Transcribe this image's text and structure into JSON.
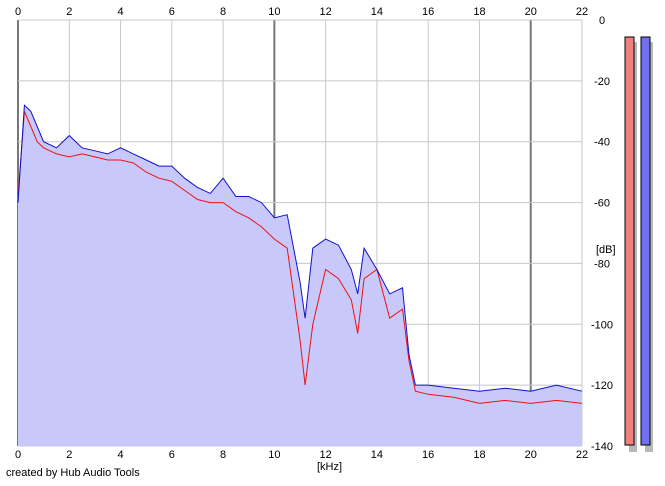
{
  "chart_data": {
    "type": "line",
    "title": "",
    "xlabel": "[kHz]",
    "ylabel": "[dB]",
    "xlim": [
      0,
      22
    ],
    "ylim": [
      -140,
      0
    ],
    "x_ticks": [
      0,
      2,
      4,
      6,
      8,
      10,
      12,
      14,
      16,
      18,
      20,
      22
    ],
    "y_ticks": [
      0,
      -20,
      -40,
      -60,
      -80,
      -100,
      -120,
      -140
    ],
    "y_tick_labels": [
      "0",
      "-20",
      "-40",
      "-60",
      "-80",
      "-100",
      "-120",
      "-140"
    ],
    "grid": true,
    "x_axis_labels_top_and_bottom": true,
    "background_fill_color": "#c8c8fa",
    "series": [
      {
        "color": "#ee1111",
        "x": [
          0,
          0.25,
          0.5,
          0.75,
          1,
          1.5,
          2,
          2.5,
          3,
          3.5,
          4,
          4.5,
          5,
          5.5,
          6,
          6.5,
          7,
          7.5,
          8,
          8.5,
          9,
          9.5,
          10,
          10.5,
          11,
          11.2,
          11.5,
          12,
          12.5,
          13,
          13.25,
          13.5,
          14,
          14.5,
          15,
          15.25,
          15.5,
          16,
          17,
          18,
          19,
          20,
          21,
          22
        ],
        "values": [
          -58,
          -30,
          -35,
          -40,
          -42,
          -44,
          -45,
          -44,
          -45,
          -46,
          -46,
          -47,
          -50,
          -52,
          -53,
          -56,
          -59,
          -60,
          -60,
          -63,
          -65,
          -68,
          -72,
          -75,
          -105,
          -120,
          -100,
          -82,
          -85,
          -92,
          -103,
          -85,
          -82,
          -98,
          -95,
          -112,
          -122,
          -123,
          -124,
          -126,
          -125,
          -126,
          -125,
          -126
        ]
      },
      {
        "color": "#1111cc",
        "x": [
          0,
          0.25,
          0.5,
          0.75,
          1,
          1.5,
          2,
          2.5,
          3,
          3.5,
          4,
          4.5,
          5,
          5.5,
          6,
          6.5,
          7,
          7.5,
          8,
          8.5,
          9,
          9.5,
          10,
          10.5,
          11,
          11.2,
          11.5,
          12,
          12.5,
          13,
          13.25,
          13.5,
          14,
          14.5,
          15,
          15.25,
          15.5,
          16,
          17,
          18,
          19,
          20,
          21,
          22
        ],
        "values": [
          -60,
          -28,
          -30,
          -35,
          -40,
          -42,
          -38,
          -42,
          -43,
          -44,
          -42,
          -44,
          -46,
          -48,
          -48,
          -52,
          -55,
          -57,
          -52,
          -58,
          -58,
          -60,
          -65,
          -64,
          -86,
          -98,
          -75,
          -72,
          -74,
          -82,
          -90,
          -75,
          -82,
          -90,
          -88,
          -110,
          -120,
          -120,
          -121,
          -122,
          -121,
          -122,
          -120,
          -122
        ]
      }
    ]
  },
  "level_meters": [
    {
      "color": "#f08080",
      "level_db": 0
    },
    {
      "color": "#7070f0",
      "level_db": 0
    }
  ],
  "footer_text": "created by Hub Audio Tools"
}
